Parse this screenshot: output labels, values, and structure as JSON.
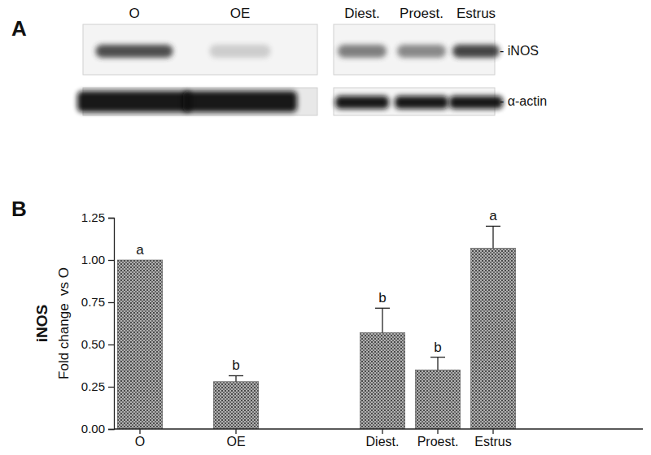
{
  "figure": {
    "panel_labels": [
      "A",
      "B"
    ]
  },
  "blot": {
    "lanes": [
      "O",
      "OE",
      "Diest.",
      "Proest.",
      "Estrus"
    ],
    "rows": [
      "- iNOS",
      "- α-actin"
    ]
  },
  "chart_data": {
    "type": "bar",
    "categories": [
      "O",
      "OE",
      "Diest.",
      "Proest.",
      "Estrus"
    ],
    "values": [
      1.0,
      0.28,
      0.57,
      0.35,
      1.07
    ],
    "errors": [
      0,
      0.035,
      0.145,
      0.075,
      0.13
    ],
    "annotations": [
      "a",
      "b",
      "b",
      "b",
      "a"
    ],
    "ylabel": [
      "iNOS",
      "Fold change  vs O"
    ],
    "ylim": [
      0,
      1.25
    ],
    "yticks": [
      {
        "value": 0,
        "label": "0.00"
      },
      {
        "value": 0.25,
        "label": "0.25"
      },
      {
        "value": 0.5,
        "label": "0.50"
      },
      {
        "value": 0.75,
        "label": "0.75"
      },
      {
        "value": 1,
        "label": "1.00"
      },
      {
        "value": 1.25,
        "label": "1.25"
      }
    ],
    "color": "#b0b0b0"
  }
}
